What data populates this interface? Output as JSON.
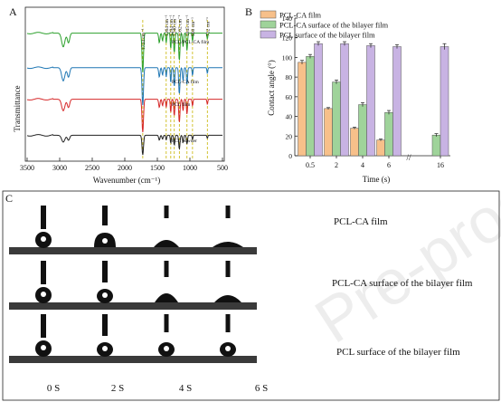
{
  "panels": {
    "a": "A",
    "b": "B",
    "c": "C"
  },
  "watermark": "Pre-proofs",
  "chart_data": [
    {
      "panel": "A",
      "type": "line",
      "title": "",
      "xlabel": "Wavenumber (cm⁻¹)",
      "ylabel": "Transmittance",
      "xlim": [
        3500,
        500
      ],
      "xticks": [
        3500,
        3000,
        2500,
        2000,
        1500,
        1000,
        500
      ],
      "xtick_labels": [
        "3500",
        "3000",
        "2500",
        "2000",
        "1500",
        "1000",
        "500"
      ],
      "reference_lines": [
        1724,
        1364,
        1294,
        1240,
        1162,
        1045,
        960,
        732
      ],
      "peak_labels": [
        {
          "x": 1724,
          "text": "1724 cm⁻¹"
        },
        {
          "x": 1364,
          "text": "1364 cm⁻¹"
        },
        {
          "x": 1294,
          "text": "1294 cm⁻¹"
        },
        {
          "x": 1240,
          "text": "1240 cm⁻¹"
        },
        {
          "x": 1162,
          "text": "1162 cm⁻¹"
        },
        {
          "x": 1045,
          "text": "1045 cm⁻¹"
        },
        {
          "x": 960,
          "text": "960 cm⁻¹"
        },
        {
          "x": 732,
          "text": "732 cm⁻¹"
        }
      ],
      "series": [
        {
          "name": "PCL/PCL-CA film",
          "color": "#2ca02c",
          "baseline": 0.84,
          "strength": 0.26
        },
        {
          "name": "PCL-CA film",
          "color": "#1f77b4",
          "baseline": 0.61,
          "strength": 0.25
        },
        {
          "name": "PCL film",
          "color": "#d62728",
          "baseline": 0.4,
          "strength": 0.22
        },
        {
          "name": "PCL powder",
          "color": "#222222",
          "baseline": 0.16,
          "strength": 0.13
        }
      ],
      "peaks": [
        [
          2945,
          0.35,
          35
        ],
        [
          2865,
          0.25,
          25
        ],
        [
          1724,
          1.0,
          16
        ],
        [
          1470,
          0.25,
          14
        ],
        [
          1420,
          0.2,
          12
        ],
        [
          1364,
          0.25,
          10
        ],
        [
          1294,
          0.4,
          10
        ],
        [
          1240,
          0.5,
          12
        ],
        [
          1162,
          0.7,
          14
        ],
        [
          1105,
          0.35,
          12
        ],
        [
          1045,
          0.45,
          12
        ],
        [
          960,
          0.2,
          10
        ],
        [
          732,
          0.15,
          10
        ]
      ]
    },
    {
      "panel": "B",
      "type": "bar",
      "title": "",
      "xlabel": "Time (s)",
      "ylabel": "Contact angle (°)",
      "ylim": [
        0,
        140
      ],
      "yticks": [
        0,
        20,
        40,
        60,
        80,
        100,
        120,
        140
      ],
      "categories": [
        "0.5",
        "2",
        "4",
        "6",
        "16"
      ],
      "axis_break": "//",
      "legend_position": "top-left",
      "series": [
        {
          "name": "PCL-CA film",
          "color": "#f7c08a",
          "values": [
            95,
            48,
            28,
            16,
            null
          ],
          "errors": [
            2,
            1,
            1,
            1,
            null
          ]
        },
        {
          "name": "PCL-CA surface of the bilayer film",
          "color": "#9fd39a",
          "values": [
            101,
            75,
            52,
            44,
            21
          ],
          "errors": [
            2,
            2,
            2,
            2,
            1.5
          ]
        },
        {
          "name": "PCL surface of the bilayer film",
          "color": "#c8b3e3",
          "values": [
            114,
            114,
            112,
            111,
            111
          ],
          "errors": [
            2,
            2,
            2,
            2,
            3
          ]
        }
      ]
    }
  ],
  "droplets": {
    "row_labels": [
      "PCL-CA film",
      "PCL-CA surface of the bilayer film",
      "PCL surface of the bilayer film"
    ],
    "time_labels": [
      "0 S",
      "2 S",
      "4 S",
      "6 S"
    ]
  }
}
